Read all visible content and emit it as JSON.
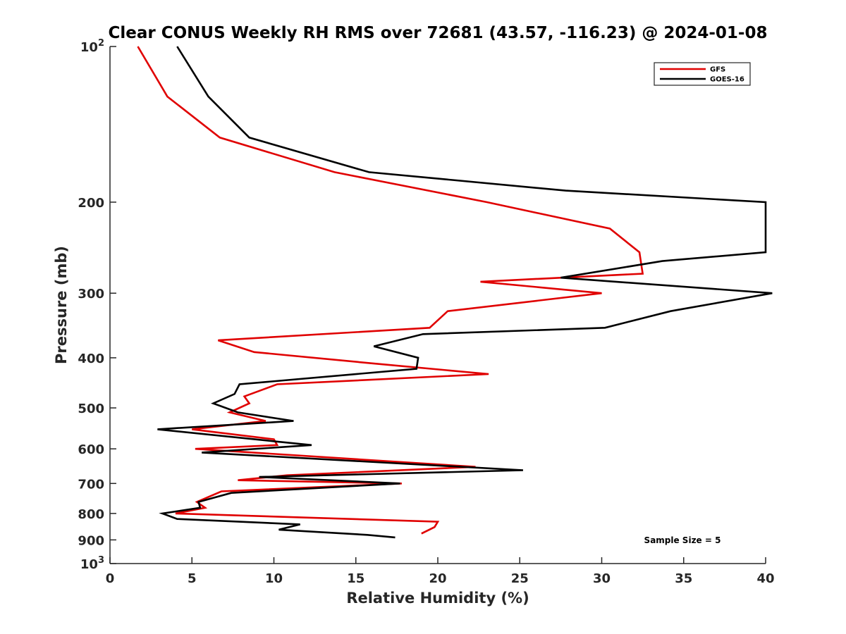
{
  "chart_data": {
    "type": "line",
    "title": "Clear CONUS Weekly RH RMS over 72681 (43.57, -116.23) @ 2024-01-08",
    "xlabel": "Relative Humidity (%)",
    "ylabel": "Pressure (mb)",
    "xlim": [
      0,
      40
    ],
    "ylim": [
      100,
      1000
    ],
    "y_scale": "log",
    "y_reversed": true,
    "grid": false,
    "legend_position": "top-right",
    "x_ticks": [
      "0",
      "5",
      "10",
      "15",
      "20",
      "25",
      "30",
      "35",
      "40"
    ],
    "y_ticks": [
      {
        "value": 100,
        "label": "10",
        "sup": "2"
      },
      {
        "value": 200,
        "label": "200"
      },
      {
        "value": 300,
        "label": "300"
      },
      {
        "value": 400,
        "label": "400"
      },
      {
        "value": 500,
        "label": "500"
      },
      {
        "value": 600,
        "label": "600"
      },
      {
        "value": 700,
        "label": "700"
      },
      {
        "value": 800,
        "label": "800"
      },
      {
        "value": 900,
        "label": "900"
      },
      {
        "value": 1000,
        "label": "10",
        "sup": "3"
      }
    ],
    "annotation": "Sample Size = 5",
    "series": [
      {
        "name": "GFS",
        "color": "#e00000",
        "points": [
          [
            1.7,
            100
          ],
          [
            3.5,
            125
          ],
          [
            6.7,
            150
          ],
          [
            13.7,
            175
          ],
          [
            23.0,
            200
          ],
          [
            30.5,
            225
          ],
          [
            32.3,
            250
          ],
          [
            32.5,
            275
          ],
          [
            22.6,
            285
          ],
          [
            30.0,
            300
          ],
          [
            20.6,
            325
          ],
          [
            19.5,
            350
          ],
          [
            6.6,
            370
          ],
          [
            8.8,
            390
          ],
          [
            16.0,
            410
          ],
          [
            23.1,
            430
          ],
          [
            10.2,
            450
          ],
          [
            8.2,
            475
          ],
          [
            8.5,
            490
          ],
          [
            7.3,
            510
          ],
          [
            9.5,
            530
          ],
          [
            5.0,
            550
          ],
          [
            10.0,
            575
          ],
          [
            10.2,
            590
          ],
          [
            5.2,
            600
          ],
          [
            22.3,
            650
          ],
          [
            10.8,
            675
          ],
          [
            7.8,
            690
          ],
          [
            17.8,
            700
          ],
          [
            6.8,
            725
          ],
          [
            5.3,
            760
          ],
          [
            5.8,
            780
          ],
          [
            4.0,
            800
          ],
          [
            20.0,
            830
          ],
          [
            19.8,
            850
          ],
          [
            19.0,
            875
          ]
        ]
      },
      {
        "name": "GOES-16",
        "color": "#000000",
        "points": [
          [
            4.1,
            100
          ],
          [
            6.0,
            125
          ],
          [
            8.5,
            150
          ],
          [
            15.8,
            175
          ],
          [
            27.8,
            190
          ],
          [
            40.0,
            200
          ],
          [
            40.0,
            250
          ],
          [
            33.7,
            260
          ],
          [
            27.5,
            280
          ],
          [
            40.4,
            300
          ],
          [
            34.2,
            325
          ],
          [
            30.2,
            350
          ],
          [
            19.1,
            360
          ],
          [
            16.1,
            380
          ],
          [
            18.8,
            400
          ],
          [
            18.7,
            420
          ],
          [
            7.9,
            450
          ],
          [
            7.6,
            470
          ],
          [
            6.3,
            490
          ],
          [
            7.8,
            510
          ],
          [
            11.2,
            530
          ],
          [
            2.9,
            550
          ],
          [
            10.0,
            580
          ],
          [
            12.3,
            590
          ],
          [
            5.6,
            610
          ],
          [
            25.2,
            660
          ],
          [
            9.1,
            680
          ],
          [
            17.7,
            700
          ],
          [
            7.4,
            730
          ],
          [
            5.4,
            760
          ],
          [
            5.5,
            780
          ],
          [
            3.2,
            800
          ],
          [
            4.1,
            820
          ],
          [
            11.6,
            840
          ],
          [
            10.3,
            860
          ],
          [
            15.7,
            880
          ],
          [
            17.4,
            890
          ]
        ]
      }
    ]
  }
}
